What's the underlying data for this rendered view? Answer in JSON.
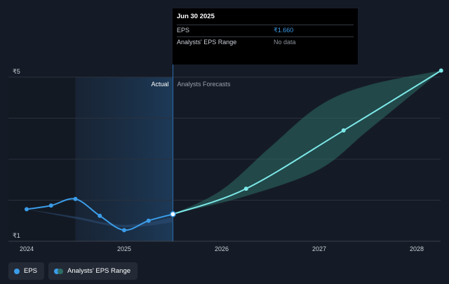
{
  "chart_data": {
    "type": "line",
    "currency_ticks": {
      "top": "₹5",
      "bottom": "₹1"
    },
    "ylim": [
      1,
      5
    ],
    "x_ticks": [
      "2024",
      "2025",
      "2026",
      "2027",
      "2028"
    ],
    "region_labels": {
      "actual": "Actual",
      "forecast": "Analysts Forecasts"
    },
    "divider_date": 2025.5,
    "series": [
      {
        "name": "EPS",
        "color": "#3b9ce8",
        "points": [
          [
            2024.0,
            1.78
          ],
          [
            2024.25,
            1.87
          ],
          [
            2024.5,
            2.03
          ],
          [
            2024.75,
            1.62
          ],
          [
            2025.0,
            1.27
          ],
          [
            2025.25,
            1.5
          ],
          [
            2025.5,
            1.66
          ]
        ]
      },
      {
        "name": "EPS Forecast",
        "color": "#7de8e8",
        "points": [
          [
            2025.5,
            1.66
          ],
          [
            2026.25,
            2.28
          ],
          [
            2027.25,
            3.7
          ],
          [
            2028.25,
            5.16
          ]
        ]
      }
    ],
    "range_band": {
      "name": "Analysts' EPS Range",
      "color": "#2e6d66",
      "historical_lower": [
        [
          2024.0,
          1.78
        ],
        [
          2024.5,
          1.55
        ],
        [
          2025.0,
          1.34
        ],
        [
          2025.5,
          1.46
        ]
      ],
      "historical_upper": [
        [
          2024.0,
          1.78
        ],
        [
          2024.5,
          1.6
        ],
        [
          2025.0,
          1.4
        ],
        [
          2025.5,
          1.58
        ]
      ],
      "upper": [
        [
          2025.5,
          1.66
        ],
        [
          2026.0,
          2.25
        ],
        [
          2026.5,
          3.3
        ],
        [
          2027.0,
          4.3
        ],
        [
          2027.5,
          4.8
        ],
        [
          2028.25,
          5.16
        ]
      ],
      "lower": [
        [
          2025.5,
          1.66
        ],
        [
          2026.25,
          2.1
        ],
        [
          2027.0,
          2.75
        ],
        [
          2027.5,
          3.7
        ],
        [
          2028.25,
          5.16
        ]
      ]
    }
  },
  "tooltip": {
    "date": "Jun 30 2025",
    "rows": [
      {
        "label": "EPS",
        "value": "₹1.660"
      },
      {
        "label": "Analysts' EPS Range",
        "value": "No data"
      }
    ]
  },
  "legend": [
    {
      "label": "EPS",
      "color": "#3b9ce8"
    },
    {
      "label": "Analysts' EPS Range",
      "colors": [
        "#3b9ce8",
        "#2e6d66"
      ]
    }
  ]
}
